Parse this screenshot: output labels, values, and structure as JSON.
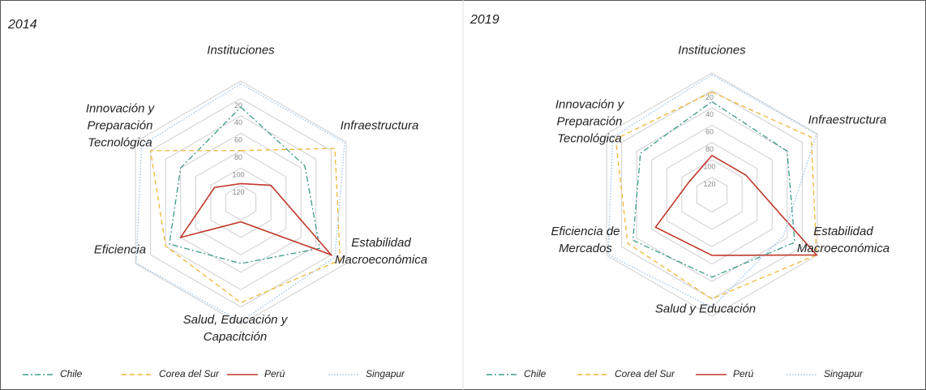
{
  "chart_data": [
    {
      "type": "radar",
      "title": "2014",
      "categories": [
        "Instituciones",
        "Infraestructura",
        "Estabilidad Macroeconómica",
        "Salud, Educación y Capacitción",
        "Eficiencia",
        "Innovación y Preparación Tecnológica"
      ],
      "rlim": [
        140,
        0
      ],
      "rticks": [
        20,
        40,
        60,
        80,
        100,
        120
      ],
      "series": [
        {
          "name": "Chile",
          "color": "#3a9c8c",
          "line_style": "dashdot",
          "values": [
            30,
            55,
            35,
            70,
            45,
            60
          ]
        },
        {
          "name": "Corea del Sur",
          "color": "#f0b73a",
          "line_style": "dashed",
          "values": [
            80,
            15,
            8,
            25,
            40,
            20
          ]
        },
        {
          "name": "Perú",
          "color": "#c0392b",
          "line_style": "solid",
          "values": [
            118,
            100,
            20,
            118,
            60,
            105
          ]
        },
        {
          "name": "Singapur",
          "color": "#9dc3e6",
          "line_style": "dotted",
          "values": [
            3,
            2,
            15,
            3,
            1,
            8
          ]
        }
      ]
    },
    {
      "type": "radar",
      "title": "2019",
      "categories": [
        "Instituciones",
        "Infraestructura",
        "Estabilidad Macroeconómica",
        "Salud y Educación",
        "Eficiencia de Mercados",
        "Innovación y Preparación Tecnológica"
      ],
      "rlim": [
        140,
        0
      ],
      "rticks": [
        20,
        40,
        60,
        80,
        100,
        120
      ],
      "series": [
        {
          "name": "Chile",
          "color": "#3a9c8c",
          "line_style": "dashdot",
          "values": [
            33,
            40,
            30,
            45,
            35,
            45
          ]
        },
        {
          "name": "Corea del Sur",
          "color": "#f0b73a",
          "line_style": "dashed",
          "values": [
            22,
            8,
            1,
            20,
            28,
            12
          ]
        },
        {
          "name": "Perú",
          "color": "#c0392b",
          "line_style": "solid",
          "values": [
            95,
            95,
            1,
            70,
            65,
            110
          ]
        },
        {
          "name": "Singapur",
          "color": "#9dc3e6",
          "line_style": "dotted",
          "values": [
            2,
            1,
            45,
            10,
            2,
            8
          ]
        }
      ]
    }
  ]
}
